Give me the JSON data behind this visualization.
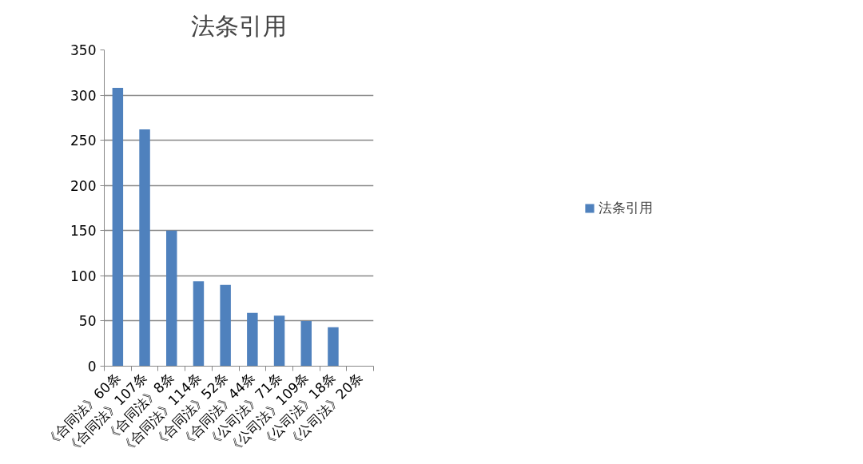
{
  "chart_data": {
    "type": "bar",
    "title": "法条引用",
    "categories": [
      "《合同法》60条",
      "《合同法》107条",
      "《合同法》8条",
      "《合同法》114条",
      "《合同法》52条",
      "《合同法》44条",
      "《公司法》71条",
      "《公司法》109条",
      "《公司法》18条",
      "《公司法》20条"
    ],
    "series": [
      {
        "name": "法条引用",
        "color": "#4f81bd",
        "values": [
          308,
          262,
          150,
          94,
          90,
          59,
          56,
          50,
          43,
          0
        ]
      }
    ],
    "ylim": [
      0,
      350
    ],
    "yticks": [
      0,
      50,
      100,
      150,
      200,
      250,
      300,
      350
    ],
    "grid": "y",
    "legend": "right"
  }
}
